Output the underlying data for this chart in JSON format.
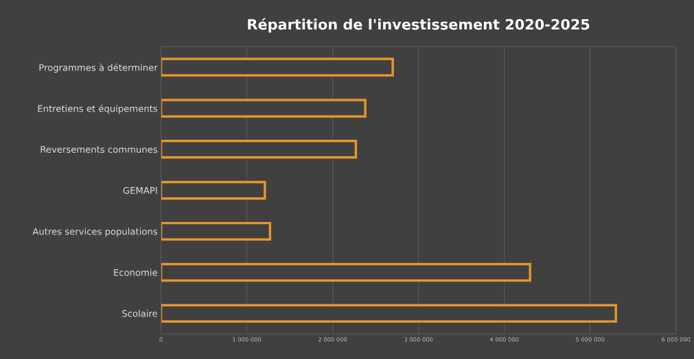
{
  "chart_data": {
    "type": "bar",
    "orientation": "horizontal",
    "title": "Répartition de l'investissement 2020-2025",
    "categories": [
      "Programmes à déterminer",
      "Entretiens et équipements",
      "Reversements communes",
      "GEMAPI",
      "Autres services populations",
      "Economie",
      "Scolaire"
    ],
    "values": [
      2700000,
      2380000,
      2270000,
      1210000,
      1270000,
      4300000,
      5300000
    ],
    "color": "#e8952c",
    "xlim": [
      0,
      6000000
    ],
    "xticks": [
      0,
      {
        "value": 1000000,
        "label": "1 000 000"
      },
      {
        "value": 2000000,
        "label": "2 000 000"
      },
      {
        "value": 3000000,
        "label": "3 000 000"
      },
      {
        "value": 4000000,
        "label": "4 000 000"
      },
      {
        "value": 5000000,
        "label": "5 000 000"
      },
      {
        "value": 6000000,
        "label": "6 000 000"
      }
    ],
    "grid": "x"
  }
}
